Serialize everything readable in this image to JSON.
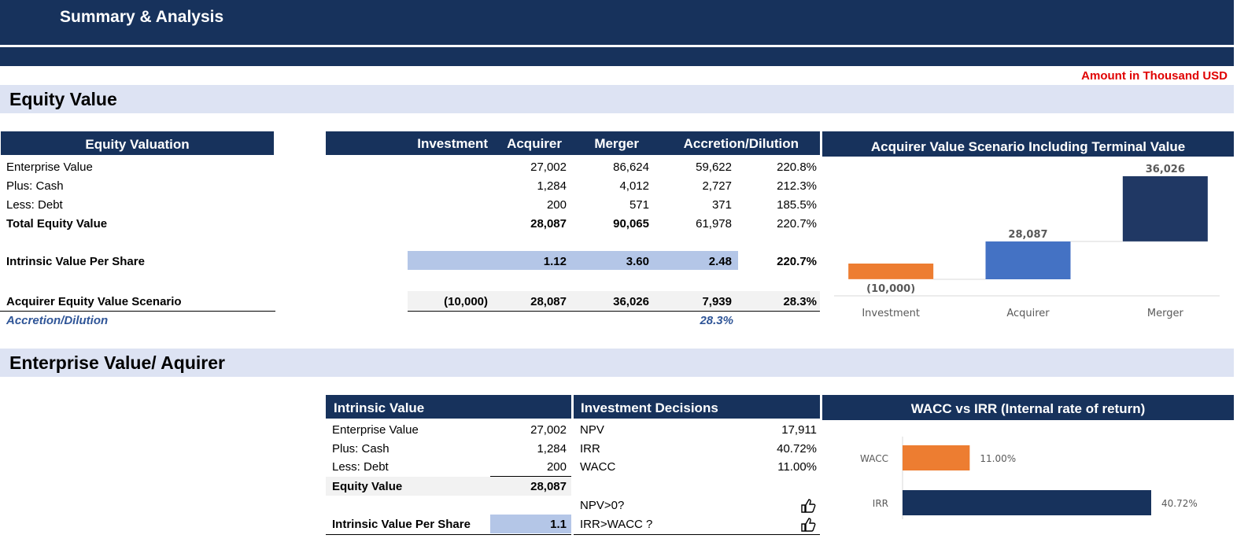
{
  "header": {
    "title": "Summary & Analysis"
  },
  "amount_note": "Amount in Thousand USD",
  "equity_section": {
    "title": "Equity Value",
    "table_header": "Equity Valuation",
    "columns": [
      "Investment",
      "Acquirer",
      "Merger",
      "Accretion/Dilution"
    ],
    "rows": [
      {
        "label": "Enterprise Value",
        "acquirer": "27,002",
        "merger": "86,624",
        "accretion": "59,622",
        "pct": "220.8%"
      },
      {
        "label": "Plus: Cash",
        "acquirer": "1,284",
        "merger": "4,012",
        "accretion": "2,727",
        "pct": "212.3%"
      },
      {
        "label": "Less: Debt",
        "acquirer": "200",
        "merger": "571",
        "accretion": "371",
        "pct": "185.5%"
      },
      {
        "label": "Total Equity Value",
        "acquirer": "28,087",
        "merger": "90,065",
        "accretion": "61,978",
        "pct": "220.7%"
      }
    ],
    "intrinsic": {
      "label": "Intrinsic Value Per Share",
      "acquirer": "1.12",
      "merger": "3.60",
      "accretion": "2.48",
      "pct": "220.7%"
    },
    "scenario": {
      "label": "Acquirer Equity Value Scenario",
      "investment": "(10,000)",
      "acquirer": "28,087",
      "merger": "36,026",
      "accretion": "7,939",
      "pct": "28.3%"
    },
    "accretion_dilution": {
      "label": "Accretion/Dilution",
      "value": "28.3%"
    }
  },
  "enterprise_section": {
    "title": "Enterprise Value/ Aquirer",
    "intrinsic_header": "Intrinsic Value",
    "intrinsic_rows": [
      {
        "label": "Enterprise Value",
        "value": "27,002"
      },
      {
        "label": "Plus: Cash",
        "value": "1,284"
      },
      {
        "label": "Less: Debt",
        "value": "200"
      }
    ],
    "equity_value": {
      "label": "Equity Value",
      "value": "28,087"
    },
    "per_share": {
      "label": "Intrinsic Value Per Share",
      "value": "1.1"
    },
    "decisions_header": "Investment Decisions",
    "decisions": [
      {
        "label": "NPV",
        "value": "17,911"
      },
      {
        "label": "IRR",
        "value": "40.72%"
      },
      {
        "label": "WACC",
        "value": "11.00%"
      }
    ],
    "checks": [
      {
        "label": "NPV>0?",
        "icon": "thumbs-up-icon"
      },
      {
        "label": "IRR>WACC ?",
        "icon": "thumbs-up-icon"
      }
    ]
  },
  "chart_data": [
    {
      "type": "bar",
      "subtype": "waterfall",
      "title": "Acquirer Value Scenario Including Terminal Value",
      "categories": [
        "Investment",
        "Acquirer",
        "Merger"
      ],
      "values": [
        -10000,
        28087,
        36026
      ],
      "data_labels": [
        "(10,000)",
        "28,087",
        "36,026"
      ],
      "colors": [
        "#ed7d31",
        "#4472c4",
        "#203864"
      ]
    },
    {
      "type": "bar",
      "orientation": "horizontal",
      "title": "WACC vs IRR (Internal rate of return)",
      "categories": [
        "WACC",
        "IRR"
      ],
      "values": [
        11.0,
        40.72
      ],
      "data_labels": [
        "11.00%",
        "40.72%"
      ],
      "colors": [
        "#ed7d31",
        "#17325c"
      ]
    }
  ]
}
